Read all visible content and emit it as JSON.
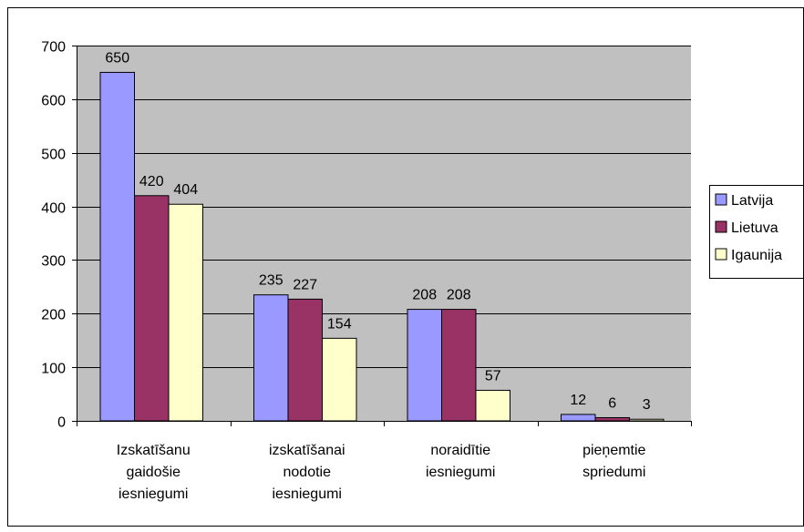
{
  "chart_data": {
    "type": "bar",
    "categories": [
      [
        "Izskatīšanu",
        "gaidošie",
        "iesniegumi"
      ],
      [
        "izskatīšanai",
        "nodotie",
        "iesniegumi"
      ],
      [
        "noraidītie",
        "iesniegumi"
      ],
      [
        "pieņemtie",
        "spriedumi"
      ]
    ],
    "series": [
      {
        "name": "Latvija",
        "values": [
          650,
          235,
          208,
          12
        ],
        "color": "#9999ff"
      },
      {
        "name": "Lietuva",
        "values": [
          420,
          227,
          208,
          6
        ],
        "color": "#993366"
      },
      {
        "name": "Igaunija",
        "values": [
          404,
          154,
          57,
          3
        ],
        "color": "#ffffcc"
      }
    ],
    "y_ticks": [
      "0",
      "100",
      "200",
      "300",
      "400",
      "500",
      "600",
      "700"
    ],
    "ylim": [
      0,
      700
    ],
    "grid": true,
    "plot_background": "#c0c0c0",
    "legend_position": "right"
  }
}
